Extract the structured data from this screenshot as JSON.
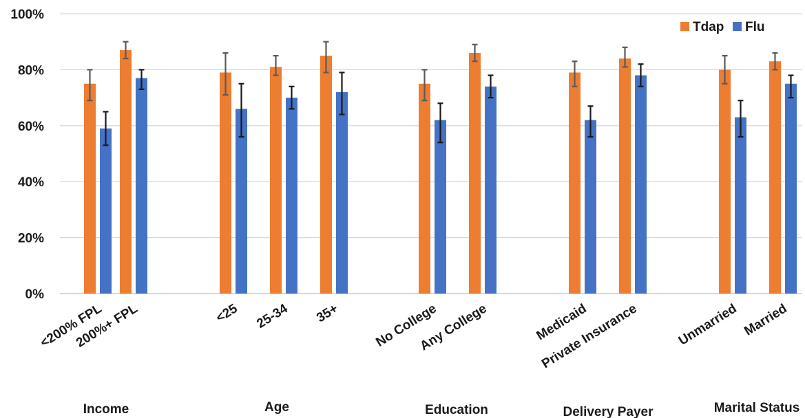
{
  "chart_data": {
    "type": "bar",
    "categories": [
      "<200% FPL",
      "200%+ FPL",
      "<25",
      "25-34",
      "35+",
      "No College",
      "Any College",
      "Medicaid",
      "Private Insurance",
      "Unmarried",
      "Married"
    ],
    "groups": [
      {
        "label": "Income",
        "categories": [
          "<200% FPL",
          "200%+ FPL"
        ]
      },
      {
        "label": "Age",
        "categories": [
          "<25",
          "25-34",
          "35+"
        ]
      },
      {
        "label": "Education",
        "categories": [
          "No College",
          "Any College"
        ]
      },
      {
        "label": "Delivery Payer",
        "categories": [
          "Medicaid",
          "Private Insurance"
        ]
      },
      {
        "label": "Marital Status",
        "categories": [
          "Unmarried",
          "Married"
        ]
      }
    ],
    "series": [
      {
        "name": "Tdap",
        "color": "#ED7D31",
        "values": [
          75,
          87,
          79,
          81,
          85,
          75,
          86,
          79,
          84,
          80,
          83
        ],
        "error_low": [
          69,
          84,
          71,
          78,
          79,
          69,
          83,
          74,
          81,
          75,
          80
        ],
        "error_high": [
          80,
          90,
          86,
          85,
          90,
          80,
          89,
          83,
          88,
          85,
          86
        ]
      },
      {
        "name": "Flu",
        "color": "#4472C4",
        "values": [
          59,
          77,
          66,
          70,
          72,
          62,
          74,
          62,
          78,
          63,
          75
        ],
        "error_low": [
          53,
          73,
          56,
          66,
          64,
          54,
          70,
          56,
          74,
          56,
          70
        ],
        "error_high": [
          65,
          80,
          75,
          74,
          79,
          68,
          78,
          67,
          82,
          69,
          78
        ]
      }
    ],
    "ylim": [
      0,
      100
    ],
    "yticks": [
      "0%",
      "20%",
      "40%",
      "60%",
      "80%",
      "100%"
    ],
    "grid": true,
    "legend_position": "top-right"
  }
}
